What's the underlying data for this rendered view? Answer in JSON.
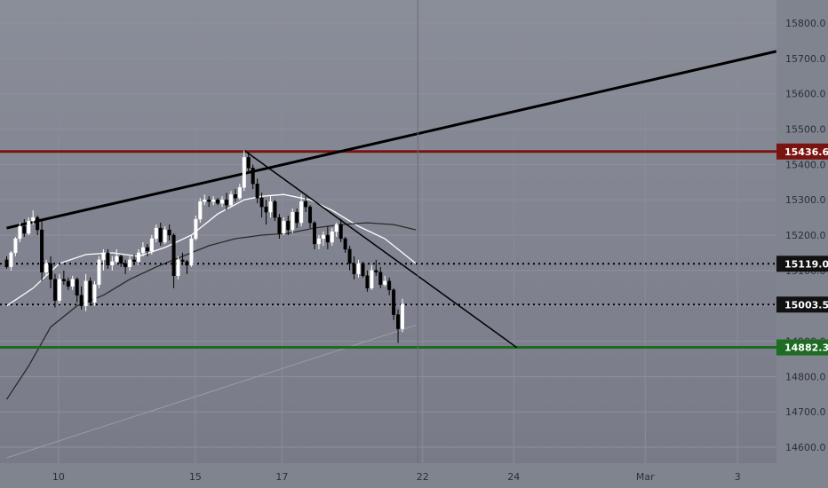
{
  "chart_data": {
    "type": "candlestick",
    "instrument_shown": "price chart with horizontal levels and trendlines",
    "y_axis": {
      "ticks": [
        14600,
        14700,
        14800,
        14900,
        15000,
        15100,
        15200,
        15300,
        15400,
        15500,
        15600,
        15700,
        15800
      ],
      "tick_labels": [
        "14600.0",
        "14700.0",
        "14800.0",
        "14900.0",
        "15000.0",
        "15100.0",
        "15200.0",
        "15300.0",
        "15400.0",
        "15500.0",
        "15600.0",
        "15700.0",
        "15800.0"
      ],
      "range": [
        14570,
        15830
      ]
    },
    "x_axis": {
      "tick_labels": [
        "10",
        "15",
        "17",
        "22",
        "24",
        "Mar",
        "3"
      ],
      "range_bars": [
        0,
        170
      ]
    },
    "grid": true,
    "colors": {
      "background": "#80848f",
      "up_candle": "#ffffff",
      "down_candle": "#000000",
      "level_red": "#7a1410",
      "level_green": "#1e6b22",
      "trendline": "#000000",
      "ma_fast": "#ffffff",
      "ma_slow": "#2b2b2b"
    },
    "price_levels": [
      {
        "name": "resistance",
        "value": 15436.6,
        "label": "15436.6",
        "style": "solid",
        "color": "#7a1410",
        "tag_bg": "#7a1410"
      },
      {
        "name": "level-mid",
        "value": 15119.0,
        "label": "15119.0",
        "style": "dotted",
        "color": "#000000",
        "tag_bg": "#111111"
      },
      {
        "name": "current",
        "value": 15003.5,
        "label": "15003.5",
        "style": "dotted",
        "color": "#000000",
        "tag_bg": "#111111"
      },
      {
        "name": "support",
        "value": 14882.3,
        "label": "14882.3",
        "style": "solid",
        "color": "#1e6b22",
        "tag_bg": "#1e6b22"
      }
    ],
    "ohlc_start_bar": 0,
    "ohlc": [
      [
        15130,
        15140,
        15105,
        15110
      ],
      [
        15110,
        15155,
        15100,
        15150
      ],
      [
        15150,
        15195,
        15140,
        15190
      ],
      [
        15190,
        15235,
        15180,
        15225
      ],
      [
        15225,
        15245,
        15195,
        15205
      ],
      [
        15205,
        15250,
        15200,
        15240
      ],
      [
        15240,
        15270,
        15230,
        15250
      ],
      [
        15250,
        15255,
        15200,
        15215
      ],
      [
        15215,
        15240,
        15070,
        15095
      ],
      [
        15095,
        15130,
        15085,
        15120
      ],
      [
        15120,
        15140,
        15050,
        15075
      ],
      [
        15075,
        15090,
        14995,
        15015
      ],
      [
        15015,
        15090,
        15005,
        15075
      ],
      [
        15075,
        15100,
        15060,
        15070
      ],
      [
        15070,
        15080,
        15045,
        15055
      ],
      [
        15055,
        15085,
        15045,
        15075
      ],
      [
        15075,
        15080,
        15010,
        15030
      ],
      [
        15030,
        15055,
        14990,
        15000
      ],
      [
        15000,
        15090,
        14985,
        15070
      ],
      [
        15070,
        15080,
        15000,
        15010
      ],
      [
        15010,
        15070,
        15000,
        15060
      ],
      [
        15060,
        15140,
        15050,
        15130
      ],
      [
        15130,
        15160,
        15100,
        15150
      ],
      [
        15150,
        15160,
        15105,
        15115
      ],
      [
        15115,
        15140,
        15100,
        15125
      ],
      [
        15125,
        15160,
        15120,
        15140
      ],
      [
        15140,
        15145,
        15110,
        15120
      ],
      [
        15120,
        15130,
        15090,
        15110
      ],
      [
        15110,
        15140,
        15100,
        15130
      ],
      [
        15130,
        15145,
        15115,
        15125
      ],
      [
        15125,
        15160,
        15115,
        15150
      ],
      [
        15150,
        15180,
        15140,
        15165
      ],
      [
        15165,
        15175,
        15140,
        15155
      ],
      [
        15155,
        15200,
        15145,
        15190
      ],
      [
        15190,
        15230,
        15180,
        15220
      ],
      [
        15220,
        15235,
        15170,
        15180
      ],
      [
        15180,
        15225,
        15175,
        15215
      ],
      [
        15215,
        15230,
        15185,
        15200
      ],
      [
        15200,
        15205,
        15050,
        15085
      ],
      [
        15085,
        15140,
        15075,
        15130
      ],
      [
        15130,
        15150,
        15115,
        15125
      ],
      [
        15125,
        15130,
        15090,
        15115
      ],
      [
        15115,
        15200,
        15110,
        15190
      ],
      [
        15190,
        15255,
        15185,
        15245
      ],
      [
        15245,
        15305,
        15235,
        15295
      ],
      [
        15295,
        15315,
        15285,
        15300
      ],
      [
        15300,
        15310,
        15280,
        15295
      ],
      [
        15295,
        15310,
        15285,
        15300
      ],
      [
        15300,
        15305,
        15285,
        15290
      ],
      [
        15290,
        15310,
        15280,
        15300
      ],
      [
        15300,
        15320,
        15270,
        15285
      ],
      [
        15285,
        15325,
        15280,
        15315
      ],
      [
        15315,
        15330,
        15295,
        15305
      ],
      [
        15305,
        15345,
        15300,
        15335
      ],
      [
        15335,
        15440,
        15325,
        15420
      ],
      [
        15420,
        15435,
        15380,
        15390
      ],
      [
        15390,
        15400,
        15330,
        15345
      ],
      [
        15345,
        15360,
        15290,
        15305
      ],
      [
        15305,
        15320,
        15250,
        15280
      ],
      [
        15280,
        15300,
        15230,
        15265
      ],
      [
        15265,
        15310,
        15250,
        15295
      ],
      [
        15295,
        15300,
        15240,
        15250
      ],
      [
        15250,
        15260,
        15190,
        15205
      ],
      [
        15205,
        15250,
        15200,
        15240
      ],
      [
        15240,
        15255,
        15200,
        15215
      ],
      [
        15215,
        15275,
        15205,
        15265
      ],
      [
        15265,
        15275,
        15220,
        15235
      ],
      [
        15235,
        15315,
        15225,
        15295
      ],
      [
        15295,
        15310,
        15265,
        15280
      ],
      [
        15280,
        15285,
        15220,
        15235
      ],
      [
        15235,
        15240,
        15160,
        15175
      ],
      [
        15175,
        15200,
        15160,
        15190
      ],
      [
        15190,
        15210,
        15170,
        15200
      ],
      [
        15200,
        15225,
        15160,
        15180
      ],
      [
        15180,
        15220,
        15170,
        15210
      ],
      [
        15210,
        15235,
        15195,
        15230
      ],
      [
        15230,
        15245,
        15180,
        15190
      ],
      [
        15190,
        15195,
        15150,
        15160
      ],
      [
        15160,
        15170,
        15100,
        15120
      ],
      [
        15120,
        15140,
        15075,
        15090
      ],
      [
        15090,
        15130,
        15080,
        15120
      ],
      [
        15120,
        15125,
        15080,
        15085
      ],
      [
        15085,
        15100,
        15040,
        15050
      ],
      [
        15050,
        15115,
        15045,
        15100
      ],
      [
        15100,
        15130,
        15085,
        15095
      ],
      [
        15095,
        15110,
        15050,
        15060
      ],
      [
        15060,
        15085,
        15055,
        15070
      ],
      [
        15070,
        15080,
        15030,
        15045
      ],
      [
        15045,
        15050,
        14960,
        14975
      ],
      [
        14975,
        14990,
        14895,
        14935
      ],
      [
        14935,
        15020,
        14925,
        15005
      ]
    ],
    "moving_averages": [
      {
        "name": "fast",
        "color": "#ffffff",
        "points": [
          [
            0,
            15000
          ],
          [
            6,
            15050
          ],
          [
            12,
            15120
          ],
          [
            18,
            15145
          ],
          [
            24,
            15150
          ],
          [
            30,
            15140
          ],
          [
            36,
            15165
          ],
          [
            42,
            15200
          ],
          [
            48,
            15260
          ],
          [
            54,
            15300
          ],
          [
            58,
            15310
          ],
          [
            63,
            15315
          ],
          [
            69,
            15300
          ],
          [
            74,
            15270
          ],
          [
            80,
            15225
          ],
          [
            86,
            15190
          ],
          [
            90,
            15150
          ],
          [
            93,
            15120
          ]
        ]
      },
      {
        "name": "slow",
        "color": "#2b2b2b",
        "points": [
          [
            0,
            14735
          ],
          [
            5,
            14830
          ],
          [
            10,
            14940
          ],
          [
            16,
            15000
          ],
          [
            22,
            15030
          ],
          [
            28,
            15075
          ],
          [
            34,
            15110
          ],
          [
            40,
            15140
          ],
          [
            46,
            15170
          ],
          [
            52,
            15190
          ],
          [
            58,
            15200
          ],
          [
            64,
            15205
          ],
          [
            70,
            15220
          ],
          [
            76,
            15230
          ],
          [
            82,
            15235
          ],
          [
            88,
            15230
          ],
          [
            93,
            15215
          ]
        ]
      },
      {
        "name": "long",
        "color": "#9a9da6",
        "points": [
          [
            0,
            14570
          ],
          [
            93,
            14945
          ]
        ]
      }
    ],
    "trendlines": [
      {
        "name": "rising-resistance",
        "from": [
          0,
          15220
        ],
        "to": [
          175,
          15720
        ],
        "color": "#000000",
        "width": 3
      },
      {
        "name": "falling-trend",
        "from": [
          54,
          15440
        ],
        "to": [
          116,
          14882
        ],
        "color": "#000000",
        "width": 1.5
      }
    ],
    "cursor_bar": 93.5
  }
}
